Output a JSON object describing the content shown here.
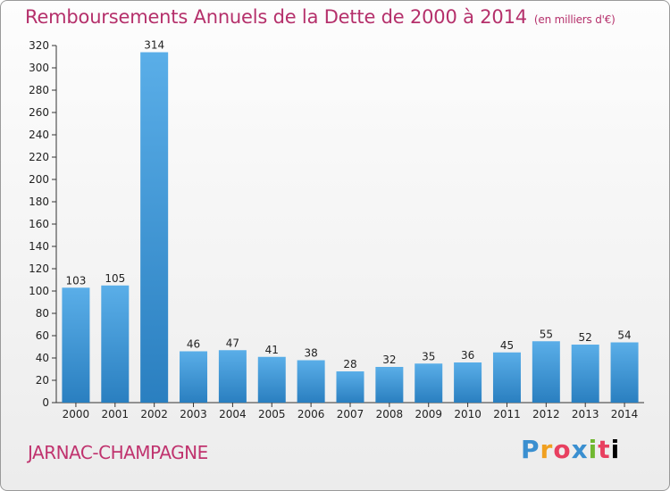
{
  "header": {
    "title": "Remboursements Annuels de la Dette de 2000 à 2014",
    "unit": "(en milliers d'€)"
  },
  "footer": {
    "commune": "JARNAC-CHAMPAGNE",
    "brand": "Proxiti"
  },
  "colors": {
    "title": "#b5306b",
    "bar_top": "#5aaee8",
    "bar_bottom": "#2a7fc0"
  },
  "chart_data": {
    "type": "bar",
    "title": "Remboursements Annuels de la Dette de 2000 à 2014",
    "categories": [
      "2000",
      "2001",
      "2002",
      "2003",
      "2004",
      "2005",
      "2006",
      "2007",
      "2008",
      "2009",
      "2010",
      "2011",
      "2012",
      "2013",
      "2014"
    ],
    "values": [
      103,
      105,
      314,
      46,
      47,
      41,
      38,
      28,
      32,
      35,
      36,
      45,
      55,
      52,
      54
    ],
    "ylim": [
      0,
      320
    ],
    "yticks": [
      0,
      20,
      40,
      60,
      80,
      100,
      120,
      140,
      160,
      180,
      200,
      220,
      240,
      260,
      280,
      300,
      320
    ],
    "grid": false
  }
}
